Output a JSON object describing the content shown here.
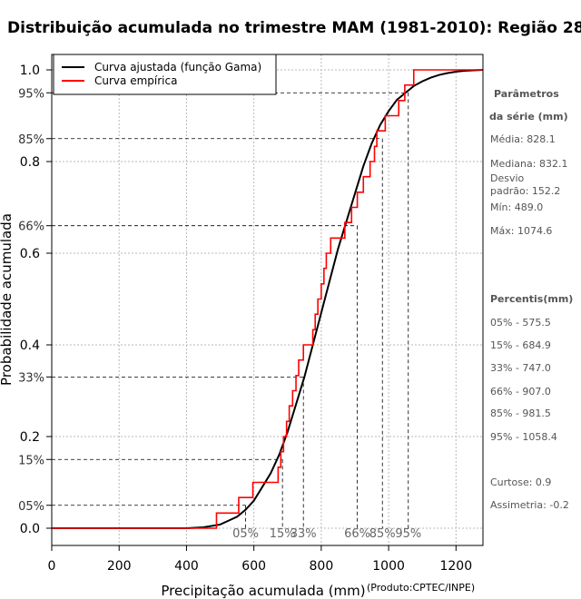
{
  "title": "Distribuição acumulada no trimestre MAM (1981-2010): Região 28",
  "chart_data": {
    "type": "line",
    "title": "Distribuição acumulada no trimestre MAM (1981-2010): Região 28",
    "xlabel": "Precipitação acumulada (mm)",
    "ylabel": "Probabilidade acumulada",
    "xlim": [
      0,
      1280
    ],
    "ylim": [
      -0.02,
      1.02
    ],
    "x_ticks": [
      0,
      200,
      400,
      600,
      800,
      1000,
      1200
    ],
    "y_ticks": [
      0.0,
      0.2,
      0.4,
      0.6,
      0.8,
      1.0
    ],
    "y_tick_labels": [
      "0.0",
      "0.2",
      "0.4",
      "0.6",
      "0.8",
      "1.0"
    ],
    "grid": true,
    "legend": {
      "position": "top-left",
      "entries": [
        {
          "label": "Curva ajustada (função Gama)",
          "color": "#000000"
        },
        {
          "label": "Curva empírica",
          "color": "#ff0000"
        }
      ]
    },
    "series": [
      {
        "name": "Curva ajustada (função Gama)",
        "color": "#000000",
        "x": [
          0,
          400,
          450,
          500,
          550,
          575,
          600,
          625,
          650,
          675,
          700,
          725,
          750,
          775,
          800,
          825,
          850,
          875,
          900,
          925,
          950,
          975,
          1000,
          1025,
          1050,
          1075,
          1100,
          1125,
          1150,
          1175,
          1200,
          1225,
          1250,
          1280
        ],
        "values": [
          0,
          0,
          0.002,
          0.008,
          0.025,
          0.04,
          0.06,
          0.09,
          0.12,
          0.16,
          0.21,
          0.27,
          0.33,
          0.4,
          0.47,
          0.54,
          0.61,
          0.67,
          0.73,
          0.79,
          0.84,
          0.88,
          0.91,
          0.935,
          0.95,
          0.965,
          0.975,
          0.983,
          0.989,
          0.993,
          0.996,
          0.998,
          0.999,
          1.0
        ]
      },
      {
        "name": "Curva empírica",
        "color": "#ff0000",
        "step": true,
        "x": [
          0,
          489,
          555,
          597,
          672,
          680,
          688,
          697,
          705,
          715,
          725,
          733,
          740,
          747,
          775,
          782,
          790,
          800,
          808,
          815,
          828,
          836,
          844,
          852,
          860,
          870,
          880,
          890,
          907,
          925,
          945,
          958,
          965,
          990,
          1005,
          1030,
          1048,
          1060,
          1074.6,
          1280
        ],
        "values": [
          0,
          0.033,
          0.067,
          0.1,
          0.133,
          0.167,
          0.2,
          0.233,
          0.267,
          0.3,
          0.333,
          0.367,
          0.367,
          0.4,
          0.433,
          0.467,
          0.5,
          0.533,
          0.567,
          0.6,
          0.633,
          0.633,
          0.633,
          0.633,
          0.633,
          0.667,
          0.667,
          0.7,
          0.733,
          0.767,
          0.8,
          0.833,
          0.867,
          0.9,
          0.9,
          0.933,
          0.967,
          0.967,
          1.0,
          1.0
        ]
      }
    ],
    "percentile_markers": [
      {
        "label": "05%",
        "axis_label": "05%",
        "p": 0.05,
        "x": 575.5
      },
      {
        "label": "15%",
        "axis_label": "15%",
        "p": 0.15,
        "x": 684.9
      },
      {
        "label": "33%",
        "axis_label": "33%",
        "p": 0.33,
        "x": 747.0
      },
      {
        "label": "66%",
        "axis_label": "66%",
        "p": 0.66,
        "x": 907.0
      },
      {
        "label": "85%",
        "axis_label": "85%",
        "p": 0.85,
        "x": 981.5
      },
      {
        "label": "95%",
        "axis_label": "95%",
        "p": 0.95,
        "x": 1058.4
      }
    ]
  },
  "side_panel": {
    "params_heading_1": "Parâmetros",
    "params_heading_2": "da série (mm)",
    "media": "Média: 828.1",
    "mediana": "Mediana: 832.1",
    "desvio_1": "Desvio",
    "desvio_2": "padrão: 152.2",
    "min": "Mín: 489.0",
    "max": "Máx: 1074.6",
    "percentis_heading": "Percentis(mm)",
    "percentis": [
      "05% - 575.5",
      "15% - 684.9",
      "33% - 747.0",
      "66% - 907.0",
      "85% - 981.5",
      "95% - 1058.4"
    ],
    "curtose": "Curtose: 0.9",
    "assimetria": "Assimetria: -0.2"
  },
  "credit": "(Produto:CPTEC/INPE)"
}
